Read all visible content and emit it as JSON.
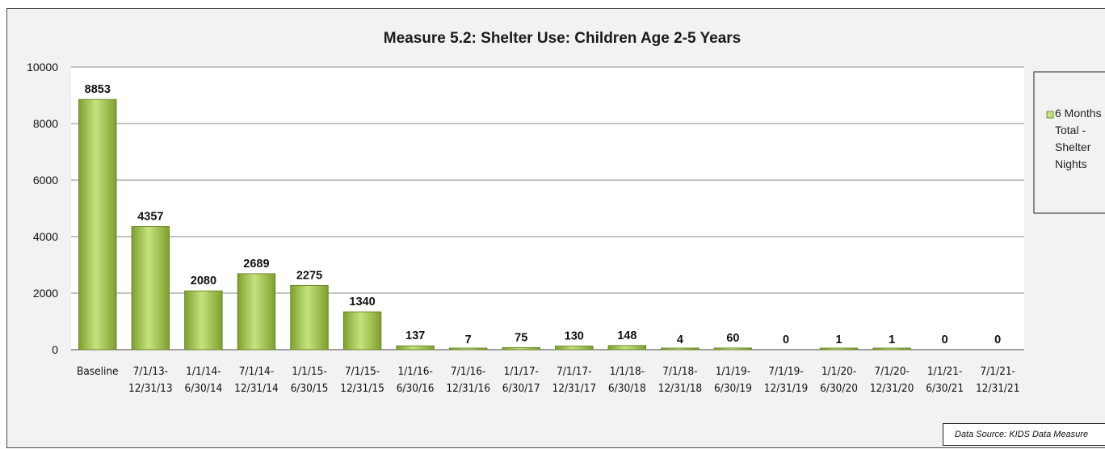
{
  "chart_data": {
    "type": "bar",
    "title": "Measure 5.2: Shelter Use:  Children Age 2-5 Years",
    "categories": [
      [
        "Baseline"
      ],
      [
        "7/1/13-",
        "12/31/13"
      ],
      [
        "1/1/14-",
        "6/30/14"
      ],
      [
        "7/1/14-",
        "12/31/14"
      ],
      [
        "1/1/15-",
        "6/30/15"
      ],
      [
        "7/1/15-",
        "12/31/15"
      ],
      [
        "1/1/16-",
        "6/30/16"
      ],
      [
        "7/1/16-",
        "12/31/16"
      ],
      [
        "1/1/17-",
        "6/30/17"
      ],
      [
        "7/1/17-",
        "12/31/17"
      ],
      [
        "1/1/18-",
        "6/30/18"
      ],
      [
        "7/1/18-",
        "12/31/18"
      ],
      [
        "1/1/19-",
        "6/30/19"
      ],
      [
        "7/1/19-",
        "12/31/19"
      ],
      [
        "1/1/20-",
        "6/30/20"
      ],
      [
        "7/1/20-",
        "12/31/20"
      ],
      [
        "1/1/21-",
        "6/30/21"
      ],
      [
        "7/1/21-",
        "12/31/21"
      ]
    ],
    "series": [
      {
        "name": "6 Months Total - Shelter Nights",
        "values": [
          8853,
          4357,
          2080,
          2689,
          2275,
          1340,
          137,
          7,
          75,
          130,
          148,
          4,
          60,
          0,
          1,
          1,
          0,
          0
        ]
      }
    ],
    "ylim": [
      0,
      10000
    ],
    "yticks": [
      "0",
      "2000",
      "4000",
      "6000",
      "8000",
      "10000"
    ],
    "grid": true,
    "legend_position": "right",
    "legend_lines": [
      "6 Months",
      "Total -",
      "Shelter",
      "Nights"
    ],
    "colors": {
      "bar_light": "#c6e27e",
      "bar_dark": "#7ea02d",
      "bar_edge": "#5e7a1c",
      "plot_bg": "#ffffff",
      "frame_bg": "#f2f2f2"
    }
  },
  "footer": {
    "source": "Data Source:  KIDS Data Measure"
  }
}
